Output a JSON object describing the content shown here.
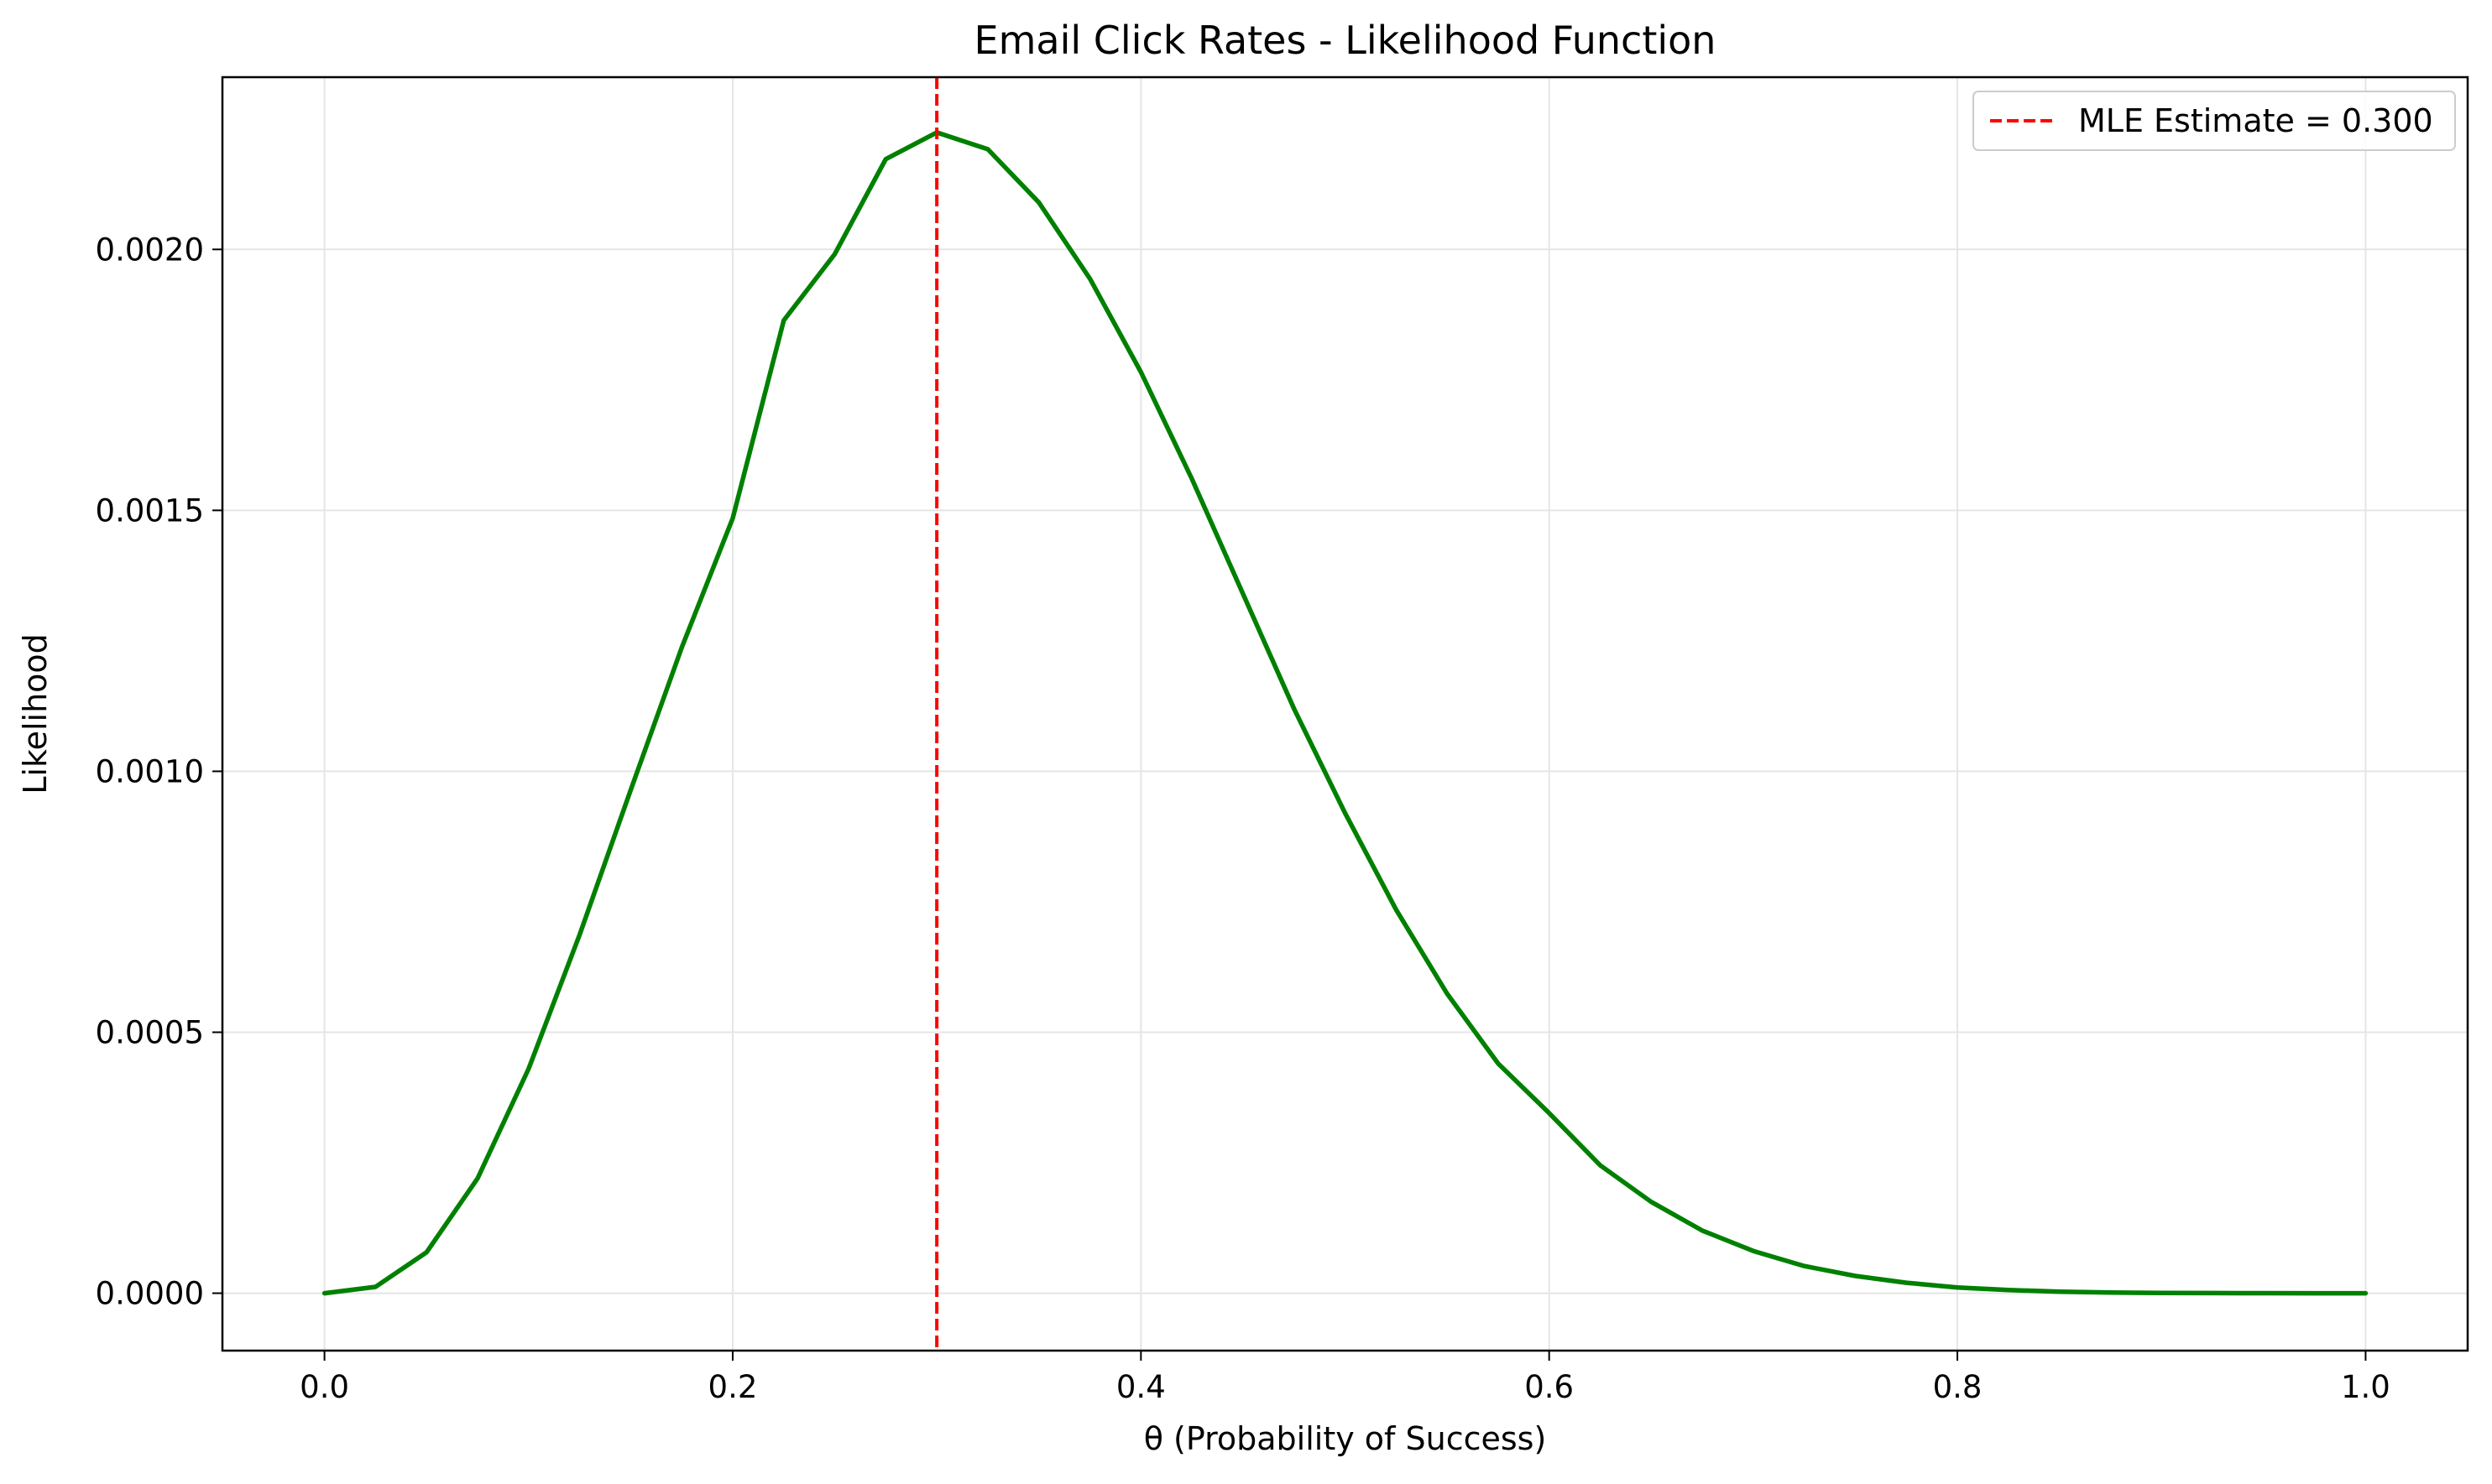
{
  "chart_data": {
    "type": "line",
    "title": "Email Click Rates - Likelihood Function",
    "xlabel": "θ (Probability of Success)",
    "ylabel": "Likelihood",
    "xlim": [
      -0.05,
      1.05
    ],
    "ylim": [
      -0.00011,
      0.00233
    ],
    "x_ticks": [
      0.0,
      0.2,
      0.4,
      0.6,
      0.8,
      1.0
    ],
    "x_tick_labels": [
      "0.0",
      "0.2",
      "0.4",
      "0.6",
      "0.8",
      "1.0"
    ],
    "y_ticks": [
      0.0,
      0.0005,
      0.001,
      0.0015,
      0.002
    ],
    "y_tick_labels": [
      "0.0000",
      "0.0005",
      "0.0010",
      "0.0015",
      "0.0020"
    ],
    "grid": true,
    "legend_position": "top-right",
    "series": [
      {
        "color": "#008000",
        "x": [
          0.0,
          0.025,
          0.05,
          0.075,
          0.1,
          0.125,
          0.15,
          0.175,
          0.2,
          0.225,
          0.25,
          0.275,
          0.3,
          0.325,
          0.35,
          0.375,
          0.4,
          0.425,
          0.45,
          0.475,
          0.5,
          0.525,
          0.55,
          0.575,
          0.6,
          0.625,
          0.65,
          0.675,
          0.7,
          0.725,
          0.75,
          0.775,
          0.8,
          0.825,
          0.85,
          0.875,
          0.9,
          0.925,
          0.95,
          0.975,
          1.0
        ],
        "y": [
          0.0,
          1.22e-05,
          7.84e-05,
          0.00022,
          0.00043,
          0.000687,
          0.000964,
          0.001237,
          0.001485,
          0.001864,
          0.001991,
          0.002173,
          0.002224,
          0.002192,
          0.00209,
          0.001944,
          0.001765,
          0.00156,
          0.00134,
          0.00112,
          0.00092,
          0.000735,
          0.000574,
          0.00044,
          0.000345,
          0.000245,
          0.000175,
          0.00012,
          8.1e-05,
          5.2e-05,
          3.3e-05,
          2e-05,
          1.1e-05,
          6e-06,
          3e-06,
          1.3e-06,
          5e-07,
          2e-07,
          1e-07,
          0.0,
          0.0
        ]
      }
    ],
    "vline": {
      "x": 0.3,
      "color": "#ff0000",
      "label": "MLE Estimate = 0.300"
    }
  }
}
